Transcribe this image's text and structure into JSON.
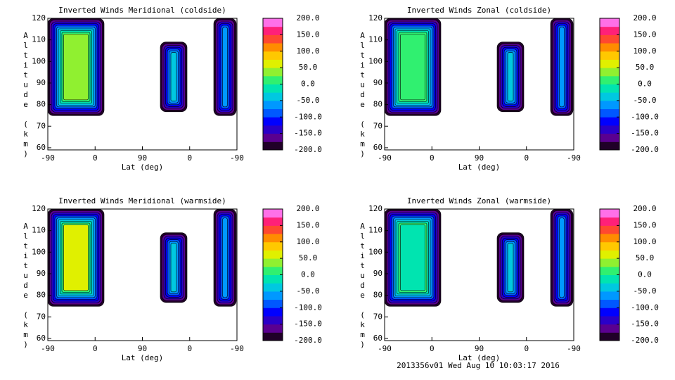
{
  "chart_data": [
    {
      "type": "contour",
      "title": "Inverted Winds Meridional (coldside)",
      "xlabel": "Lat (deg)",
      "ylabel": "Altitude (km)",
      "xlim": [
        0,
        360
      ],
      "xticks": [
        {
          "value": 0,
          "label": "-90"
        },
        {
          "value": 90,
          "label": "0"
        },
        {
          "value": 180,
          "label": "90"
        },
        {
          "value": 270,
          "label": "0"
        },
        {
          "value": 360,
          "label": "-90"
        }
      ],
      "ylim": [
        59,
        120
      ],
      "yticks": [
        60,
        70,
        80,
        90,
        100,
        110,
        120
      ],
      "colorbar": {
        "lim": [
          -200,
          200
        ],
        "ticks": [
          {
            "value": 200,
            "label": "200.0"
          },
          {
            "value": 150,
            "label": "150.0"
          },
          {
            "value": 100,
            "label": "100.0"
          },
          {
            "value": 50,
            "label": "50.0"
          },
          {
            "value": 0,
            "label": "0.0"
          },
          {
            "value": -50,
            "label": "-50.0"
          },
          {
            "value": -100,
            "label": "-100.0"
          },
          {
            "value": -150,
            "label": "-150.0"
          },
          {
            "value": -200,
            "label": "-200.0"
          }
        ],
        "colors": [
          "#200028",
          "#5a0090",
          "#2a00c8",
          "#0000ff",
          "#0058ff",
          "#0098ff",
          "#00c8e0",
          "#00e4b0",
          "#30f070",
          "#90f030",
          "#e0f000",
          "#ffc800",
          "#ff8c00",
          "#ff4830",
          "#ff2078",
          "#ff70e8"
        ]
      }
    },
    {
      "type": "contour",
      "title": "Inverted Winds Zonal (coldside)",
      "xlabel": "Lat (deg)",
      "ylabel": "Altitude (km)",
      "xlim": [
        0,
        360
      ],
      "xticks": [
        {
          "value": 0,
          "label": "-90"
        },
        {
          "value": 90,
          "label": "0"
        },
        {
          "value": 180,
          "label": "90"
        },
        {
          "value": 270,
          "label": "0"
        },
        {
          "value": 360,
          "label": "-90"
        }
      ],
      "ylim": [
        59,
        120
      ],
      "yticks": [
        60,
        70,
        80,
        90,
        100,
        110,
        120
      ],
      "colorbar": {
        "lim": [
          -200,
          200
        ],
        "ticks": [
          {
            "value": 200,
            "label": "200.0"
          },
          {
            "value": 150,
            "label": "150.0"
          },
          {
            "value": 100,
            "label": "100.0"
          },
          {
            "value": 50,
            "label": "50.0"
          },
          {
            "value": 0,
            "label": "0.0"
          },
          {
            "value": -50,
            "label": "-50.0"
          },
          {
            "value": -100,
            "label": "-100.0"
          },
          {
            "value": -150,
            "label": "-150.0"
          },
          {
            "value": -200,
            "label": "-200.0"
          }
        ],
        "colors": [
          "#200028",
          "#5a0090",
          "#2a00c8",
          "#0000ff",
          "#0058ff",
          "#0098ff",
          "#00c8e0",
          "#00e4b0",
          "#30f070",
          "#90f030",
          "#e0f000",
          "#ffc800",
          "#ff8c00",
          "#ff4830",
          "#ff2078",
          "#ff70e8"
        ]
      }
    },
    {
      "type": "contour",
      "title": "Inverted Winds Meridional (warmside)",
      "xlabel": "Lat (deg)",
      "ylabel": "Altitude (km)",
      "xlim": [
        0,
        360
      ],
      "xticks": [
        {
          "value": 0,
          "label": "-90"
        },
        {
          "value": 90,
          "label": "0"
        },
        {
          "value": 180,
          "label": "90"
        },
        {
          "value": 270,
          "label": "0"
        },
        {
          "value": 360,
          "label": "-90"
        }
      ],
      "ylim": [
        59,
        120
      ],
      "yticks": [
        60,
        70,
        80,
        90,
        100,
        110,
        120
      ],
      "colorbar": {
        "lim": [
          -200,
          200
        ],
        "ticks": [
          {
            "value": 200,
            "label": "200.0"
          },
          {
            "value": 150,
            "label": "150.0"
          },
          {
            "value": 100,
            "label": "100.0"
          },
          {
            "value": 50,
            "label": "50.0"
          },
          {
            "value": 0,
            "label": "0.0"
          },
          {
            "value": -50,
            "label": "-50.0"
          },
          {
            "value": -100,
            "label": "-100.0"
          },
          {
            "value": -150,
            "label": "-150.0"
          },
          {
            "value": -200,
            "label": "-200.0"
          }
        ],
        "colors": [
          "#200028",
          "#5a0090",
          "#2a00c8",
          "#0000ff",
          "#0058ff",
          "#0098ff",
          "#00c8e0",
          "#00e4b0",
          "#30f070",
          "#90f030",
          "#e0f000",
          "#ffc800",
          "#ff8c00",
          "#ff4830",
          "#ff2078",
          "#ff70e8"
        ]
      }
    },
    {
      "type": "contour",
      "title": "Inverted Winds Zonal (warmside)",
      "xlabel": "Lat (deg)",
      "ylabel": "Altitude (km)",
      "xlim": [
        0,
        360
      ],
      "xticks": [
        {
          "value": 0,
          "label": "-90"
        },
        {
          "value": 90,
          "label": "0"
        },
        {
          "value": 180,
          "label": "90"
        },
        {
          "value": 270,
          "label": "0"
        },
        {
          "value": 360,
          "label": "-90"
        }
      ],
      "ylim": [
        59,
        120
      ],
      "yticks": [
        60,
        70,
        80,
        90,
        100,
        110,
        120
      ],
      "colorbar": {
        "lim": [
          -200,
          200
        ],
        "ticks": [
          {
            "value": 200,
            "label": "200.0"
          },
          {
            "value": 150,
            "label": "150.0"
          },
          {
            "value": 100,
            "label": "100.0"
          },
          {
            "value": 50,
            "label": "50.0"
          },
          {
            "value": 0,
            "label": "0.0"
          },
          {
            "value": -50,
            "label": "-50.0"
          },
          {
            "value": -100,
            "label": "-100.0"
          },
          {
            "value": -150,
            "label": "-150.0"
          },
          {
            "value": -200,
            "label": "-200.0"
          }
        ],
        "colors": [
          "#200028",
          "#5a0090",
          "#2a00c8",
          "#0000ff",
          "#0058ff",
          "#0098ff",
          "#00c8e0",
          "#00e4b0",
          "#30f070",
          "#90f030",
          "#e0f000",
          "#ffc800",
          "#ff8c00",
          "#ff4830",
          "#ff2078",
          "#ff70e8"
        ]
      }
    }
  ],
  "footer": "2013356v01 Wed Aug 10 10:03:17 2016"
}
